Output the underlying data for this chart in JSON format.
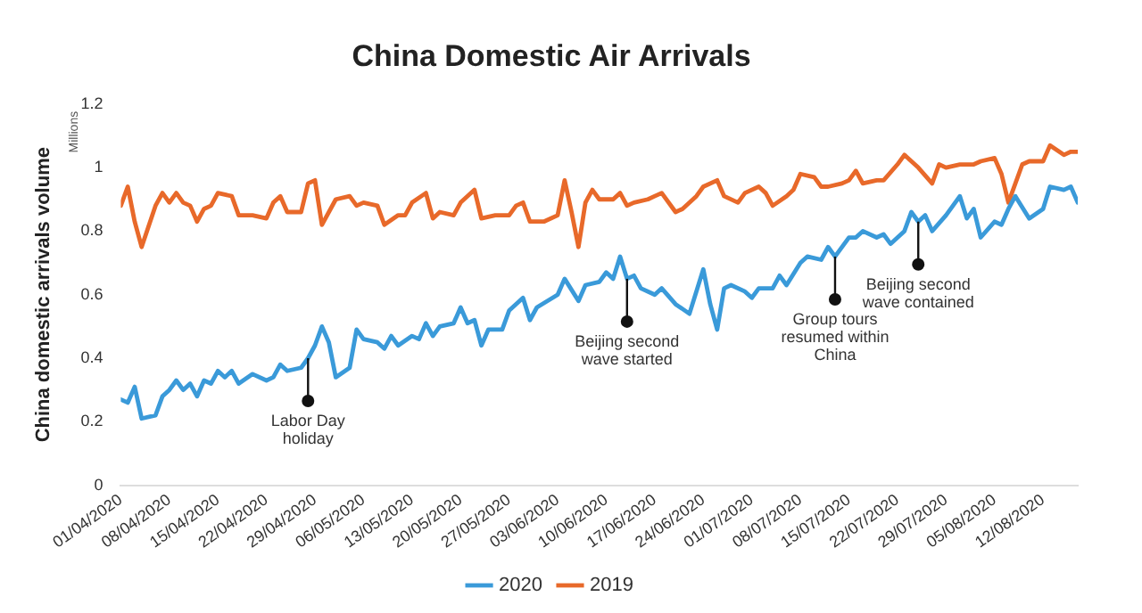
{
  "chart_data": {
    "type": "line",
    "title": "China Domestic Air Arrivals",
    "ylabel": "China domestic arrivals volume",
    "xlim": [
      "2020-04-01",
      "2020-08-17"
    ],
    "ylim": [
      0,
      1.2
    ],
    "yticks": [
      0,
      0.2,
      0.4,
      0.6,
      0.8,
      1,
      1.2
    ],
    "xticks": [
      {
        "value": "2020-04-01",
        "label": "01/04/2020"
      },
      {
        "value": "2020-04-08",
        "label": "08/04/2020"
      },
      {
        "value": "2020-04-15",
        "label": "15/04/2020"
      },
      {
        "value": "2020-04-22",
        "label": "22/04/2020"
      },
      {
        "value": "2020-04-29",
        "label": "29/04/2020"
      },
      {
        "value": "2020-05-06",
        "label": "06/05/2020"
      },
      {
        "value": "2020-05-13",
        "label": "13/05/2020"
      },
      {
        "value": "2020-05-20",
        "label": "20/05/2020"
      },
      {
        "value": "2020-05-27",
        "label": "27/05/2020"
      },
      {
        "value": "2020-06-03",
        "label": "03/06/2020"
      },
      {
        "value": "2020-06-10",
        "label": "10/06/2020"
      },
      {
        "value": "2020-06-17",
        "label": "17/06/2020"
      },
      {
        "value": "2020-06-24",
        "label": "24/06/2020"
      },
      {
        "value": "2020-07-01",
        "label": "01/07/2020"
      },
      {
        "value": "2020-07-08",
        "label": "08/07/2020"
      },
      {
        "value": "2020-07-15",
        "label": "15/07/2020"
      },
      {
        "value": "2020-07-22",
        "label": "22/07/2020"
      },
      {
        "value": "2020-07-29",
        "label": "29/07/2020"
      },
      {
        "value": "2020-08-05",
        "label": "05/08/2020"
      },
      {
        "value": "2020-08-12",
        "label": "12/08/2020"
      }
    ],
    "grid": false,
    "legend": "bottom",
    "annotations": [
      "Millions",
      {
        "text": "Labor Day holiday",
        "x": "2020-04-28",
        "y": 0.4
      },
      {
        "text": "Beijing second wave started",
        "x": "2020-06-13",
        "y": 0.65
      },
      {
        "text": "Group tours resumed within China",
        "x": "2020-07-13",
        "y": 0.72
      },
      {
        "text": "Beijing second wave contained",
        "x": "2020-07-25",
        "y": 0.83
      }
    ],
    "series": [
      {
        "name": "2020",
        "color": "#3a9ad9",
        "x": [
          "2020-04-01",
          "2020-04-02",
          "2020-04-03",
          "2020-04-04",
          "2020-04-06",
          "2020-04-07",
          "2020-04-08",
          "2020-04-09",
          "2020-04-10",
          "2020-04-11",
          "2020-04-12",
          "2020-04-13",
          "2020-04-14",
          "2020-04-15",
          "2020-04-16",
          "2020-04-17",
          "2020-04-18",
          "2020-04-20",
          "2020-04-22",
          "2020-04-23",
          "2020-04-24",
          "2020-04-25",
          "2020-04-27",
          "2020-04-28",
          "2020-04-29",
          "2020-04-30",
          "2020-05-01",
          "2020-05-02",
          "2020-05-04",
          "2020-05-05",
          "2020-05-06",
          "2020-05-08",
          "2020-05-09",
          "2020-05-10",
          "2020-05-11",
          "2020-05-13",
          "2020-05-14",
          "2020-05-15",
          "2020-05-16",
          "2020-05-17",
          "2020-05-19",
          "2020-05-20",
          "2020-05-21",
          "2020-05-22",
          "2020-05-23",
          "2020-05-24",
          "2020-05-26",
          "2020-05-27",
          "2020-05-29",
          "2020-05-30",
          "2020-05-31",
          "2020-06-03",
          "2020-06-04",
          "2020-06-06",
          "2020-06-07",
          "2020-06-09",
          "2020-06-10",
          "2020-06-11",
          "2020-06-12",
          "2020-06-13",
          "2020-06-14",
          "2020-06-15",
          "2020-06-17",
          "2020-06-18",
          "2020-06-20",
          "2020-06-22",
          "2020-06-24",
          "2020-06-25",
          "2020-06-26",
          "2020-06-27",
          "2020-06-28",
          "2020-06-30",
          "2020-07-01",
          "2020-07-02",
          "2020-07-04",
          "2020-07-05",
          "2020-07-06",
          "2020-07-08",
          "2020-07-09",
          "2020-07-11",
          "2020-07-12",
          "2020-07-13",
          "2020-07-15",
          "2020-07-16",
          "2020-07-17",
          "2020-07-19",
          "2020-07-20",
          "2020-07-21",
          "2020-07-23",
          "2020-07-24",
          "2020-07-25",
          "2020-07-26",
          "2020-07-27",
          "2020-07-29",
          "2020-07-31",
          "2020-08-01",
          "2020-08-02",
          "2020-08-03",
          "2020-08-05",
          "2020-08-06",
          "2020-08-07",
          "2020-08-08",
          "2020-08-10",
          "2020-08-12",
          "2020-08-13",
          "2020-08-15",
          "2020-08-16",
          "2020-08-17"
        ],
        "values": [
          0.27,
          0.26,
          0.31,
          0.21,
          0.22,
          0.28,
          0.3,
          0.33,
          0.3,
          0.32,
          0.28,
          0.33,
          0.32,
          0.36,
          0.34,
          0.36,
          0.32,
          0.35,
          0.33,
          0.34,
          0.38,
          0.36,
          0.37,
          0.4,
          0.44,
          0.5,
          0.45,
          0.34,
          0.37,
          0.49,
          0.46,
          0.45,
          0.43,
          0.47,
          0.44,
          0.47,
          0.46,
          0.51,
          0.47,
          0.5,
          0.51,
          0.56,
          0.51,
          0.52,
          0.44,
          0.49,
          0.49,
          0.55,
          0.59,
          0.52,
          0.56,
          0.6,
          0.65,
          0.58,
          0.63,
          0.64,
          0.67,
          0.65,
          0.72,
          0.65,
          0.66,
          0.62,
          0.6,
          0.62,
          0.57,
          0.54,
          0.68,
          0.57,
          0.49,
          0.62,
          0.63,
          0.61,
          0.59,
          0.62,
          0.62,
          0.66,
          0.63,
          0.7,
          0.72,
          0.71,
          0.75,
          0.72,
          0.78,
          0.78,
          0.8,
          0.78,
          0.79,
          0.76,
          0.8,
          0.86,
          0.83,
          0.85,
          0.8,
          0.85,
          0.91,
          0.84,
          0.87,
          0.78,
          0.83,
          0.82,
          0.87,
          0.91,
          0.84,
          0.87,
          0.94,
          0.93,
          0.94,
          0.89
        ]
      },
      {
        "name": "2019",
        "color": "#e8692a",
        "x": [
          "2020-04-01",
          "2020-04-02",
          "2020-04-03",
          "2020-04-04",
          "2020-04-06",
          "2020-04-07",
          "2020-04-08",
          "2020-04-09",
          "2020-04-10",
          "2020-04-11",
          "2020-04-12",
          "2020-04-13",
          "2020-04-14",
          "2020-04-15",
          "2020-04-17",
          "2020-04-18",
          "2020-04-20",
          "2020-04-22",
          "2020-04-23",
          "2020-04-24",
          "2020-04-25",
          "2020-04-27",
          "2020-04-28",
          "2020-04-29",
          "2020-04-30",
          "2020-05-02",
          "2020-05-04",
          "2020-05-05",
          "2020-05-06",
          "2020-05-08",
          "2020-05-09",
          "2020-05-11",
          "2020-05-12",
          "2020-05-13",
          "2020-05-15",
          "2020-05-16",
          "2020-05-17",
          "2020-05-19",
          "2020-05-20",
          "2020-05-22",
          "2020-05-23",
          "2020-05-25",
          "2020-05-27",
          "2020-05-28",
          "2020-05-29",
          "2020-05-30",
          "2020-06-01",
          "2020-06-03",
          "2020-06-04",
          "2020-06-05",
          "2020-06-06",
          "2020-06-07",
          "2020-06-08",
          "2020-06-09",
          "2020-06-11",
          "2020-06-12",
          "2020-06-13",
          "2020-06-14",
          "2020-06-16",
          "2020-06-17",
          "2020-06-18",
          "2020-06-20",
          "2020-06-21",
          "2020-06-23",
          "2020-06-24",
          "2020-06-26",
          "2020-06-27",
          "2020-06-29",
          "2020-06-30",
          "2020-07-02",
          "2020-07-03",
          "2020-07-04",
          "2020-07-06",
          "2020-07-07",
          "2020-07-08",
          "2020-07-10",
          "2020-07-11",
          "2020-07-12",
          "2020-07-14",
          "2020-07-15",
          "2020-07-16",
          "2020-07-17",
          "2020-07-19",
          "2020-07-20",
          "2020-07-22",
          "2020-07-23",
          "2020-07-25",
          "2020-07-27",
          "2020-07-28",
          "2020-07-29",
          "2020-07-31",
          "2020-08-02",
          "2020-08-03",
          "2020-08-05",
          "2020-08-06",
          "2020-08-07",
          "2020-08-09",
          "2020-08-10",
          "2020-08-12",
          "2020-08-13",
          "2020-08-15",
          "2020-08-16",
          "2020-08-17"
        ],
        "values": [
          0.88,
          0.94,
          0.83,
          0.75,
          0.88,
          0.92,
          0.89,
          0.92,
          0.89,
          0.88,
          0.83,
          0.87,
          0.88,
          0.92,
          0.91,
          0.85,
          0.85,
          0.84,
          0.89,
          0.91,
          0.86,
          0.86,
          0.95,
          0.96,
          0.82,
          0.9,
          0.91,
          0.88,
          0.89,
          0.88,
          0.82,
          0.85,
          0.85,
          0.89,
          0.92,
          0.84,
          0.86,
          0.85,
          0.89,
          0.93,
          0.84,
          0.85,
          0.85,
          0.88,
          0.89,
          0.83,
          0.83,
          0.85,
          0.96,
          0.86,
          0.75,
          0.89,
          0.93,
          0.9,
          0.9,
          0.92,
          0.88,
          0.89,
          0.9,
          0.91,
          0.92,
          0.86,
          0.87,
          0.91,
          0.94,
          0.96,
          0.91,
          0.89,
          0.92,
          0.94,
          0.92,
          0.88,
          0.91,
          0.93,
          0.98,
          0.97,
          0.94,
          0.94,
          0.95,
          0.96,
          0.99,
          0.95,
          0.96,
          0.96,
          1.01,
          1.04,
          1.0,
          0.95,
          1.01,
          1.0,
          1.01,
          1.01,
          1.02,
          1.03,
          0.98,
          0.89,
          1.01,
          1.02,
          1.02,
          1.07,
          1.04,
          1.05,
          1.05
        ]
      }
    ]
  }
}
